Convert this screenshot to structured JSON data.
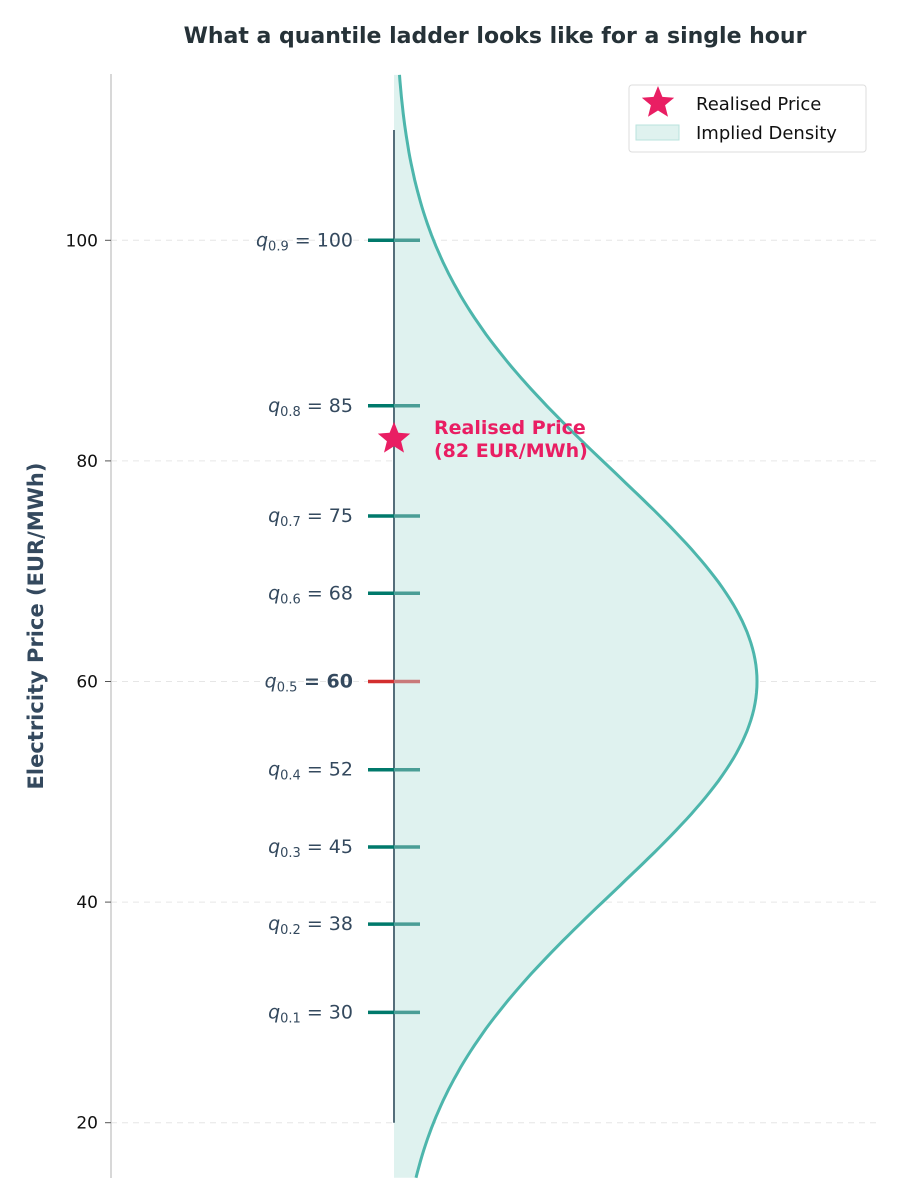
{
  "colors": {
    "teal_dark": "#00796b",
    "teal_mid": "#4a9e96",
    "density_line": "#4db6ac",
    "density_fill": "#dff2ef",
    "median": "#d32f2f",
    "median_right": "#c97a7a",
    "star": "#e91e63",
    "axis_vertical": "#546e7a",
    "text_dark": "#34495e"
  },
  "chart_data": {
    "type": "line",
    "title": "What a quantile ladder looks like for a single hour",
    "ylabel": "Electricity Price (EUR/MWh)",
    "xlabel": "",
    "ylim": [
      15,
      115
    ],
    "yticks": [
      20,
      40,
      60,
      80,
      100
    ],
    "grid": true,
    "legend_position": "top-right",
    "legend": [
      "Realised Price",
      "Implied Density"
    ],
    "quantiles": [
      {
        "q": "0.1",
        "value": 30
      },
      {
        "q": "0.2",
        "value": 38
      },
      {
        "q": "0.3",
        "value": 45
      },
      {
        "q": "0.4",
        "value": 52
      },
      {
        "q": "0.5",
        "value": 60,
        "median": true
      },
      {
        "q": "0.6",
        "value": 68
      },
      {
        "q": "0.7",
        "value": 75
      },
      {
        "q": "0.8",
        "value": 85
      },
      {
        "q": "0.9",
        "value": 100
      }
    ],
    "realised_price": 82,
    "annotation": {
      "line1": "Realised Price",
      "line2": "(82 EUR/MWh)"
    },
    "ladder_range": [
      20,
      110
    ],
    "density": {
      "peak_price": 60,
      "spread": 19
    }
  }
}
